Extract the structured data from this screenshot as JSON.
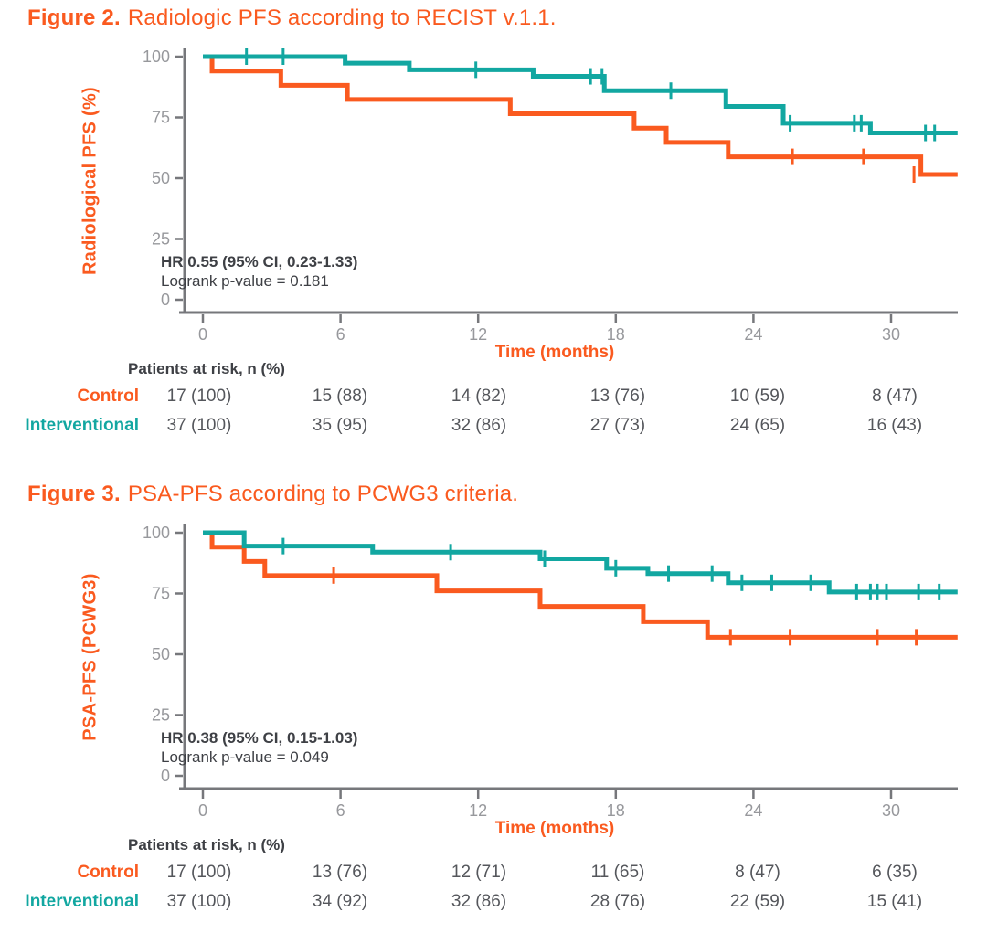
{
  "colors": {
    "orange": "#FA5A1F",
    "teal": "#12A7A1",
    "axis": "#76777B",
    "tick_label": "#97989C",
    "text_dark": "#3E4045",
    "risk_value": "#54565B"
  },
  "figures": [
    {
      "id": "fig2",
      "title_bold": "Figure 2.",
      "title_rest": "Radiologic PFS according to RECIST v.1.1.",
      "ylabel": "Radiological PFS (%)",
      "xlabel": "Time (months)",
      "hr_line1": "HR 0.55 (95% CI, 0.23-1.33)",
      "hr_line2": "Logrank p-value = 0.181",
      "risk_header": "Patients at risk, n (%)",
      "risk_rows": [
        {
          "label": "Control",
          "color": "#FA5A1F",
          "values": [
            "17 (100)",
            "15 (88)",
            "14 (82)",
            "13 (76)",
            "10 (59)",
            "8 (47)"
          ]
        },
        {
          "label": "Interventional",
          "color": "#12A7A1",
          "values": [
            "37 (100)",
            "35 (95)",
            "32 (86)",
            "27 (73)",
            "24 (65)",
            "16 (43)"
          ]
        }
      ],
      "chart_data": {
        "type": "line",
        "subtype": "kaplan-meier-step",
        "title": "Radiologic PFS according to RECIST v.1.1.",
        "xlabel": "Time (months)",
        "ylabel": "Radiological PFS (%)",
        "xlim": [
          0,
          33
        ],
        "ylim": [
          0,
          100
        ],
        "x_ticks": [
          0,
          6,
          12,
          18,
          24,
          30
        ],
        "y_ticks": [
          0,
          25,
          50,
          75,
          100
        ],
        "grid": false,
        "legend": "none",
        "series": [
          {
            "name": "Control",
            "color": "#FA5A1F",
            "steps": [
              [
                0,
                100
              ],
              [
                0.4,
                94.1
              ],
              [
                3.4,
                88.2
              ],
              [
                6.3,
                82.4
              ],
              [
                13.4,
                76.5
              ],
              [
                18.8,
                70.6
              ],
              [
                20.2,
                64.7
              ],
              [
                22.9,
                58.8
              ],
              [
                31.3,
                51.5
              ],
              [
                32.9,
                51.5
              ]
            ],
            "censors": [
              [
                25.7,
                58.8
              ],
              [
                28.8,
                58.8
              ],
              [
                31.0,
                51.5
              ]
            ]
          },
          {
            "name": "Interventional",
            "color": "#12A7A1",
            "steps": [
              [
                0,
                100
              ],
              [
                6.2,
                97.3
              ],
              [
                9.0,
                94.6
              ],
              [
                14.4,
                91.9
              ],
              [
                17.5,
                86.0
              ],
              [
                22.8,
                79.5
              ],
              [
                25.3,
                72.6
              ],
              [
                29.1,
                68.6
              ],
              [
                32.9,
                68.6
              ]
            ],
            "censors": [
              [
                1.9,
                100
              ],
              [
                3.5,
                100
              ],
              [
                11.9,
                94.6
              ],
              [
                16.9,
                91.9
              ],
              [
                17.4,
                91.9
              ],
              [
                20.4,
                86.0
              ],
              [
                25.6,
                72.6
              ],
              [
                28.4,
                72.6
              ],
              [
                28.7,
                72.6
              ],
              [
                31.5,
                68.6
              ],
              [
                31.9,
                68.6
              ]
            ]
          }
        ]
      }
    },
    {
      "id": "fig3",
      "title_bold": "Figure 3.",
      "title_rest": "PSA-PFS according to PCWG3 criteria.",
      "ylabel": "PSA-PFS (PCWG3)",
      "xlabel": "Time (months)",
      "hr_line1": "HR 0.38 (95% CI, 0.15-1.03)",
      "hr_line2": "Logrank p-value = 0.049",
      "risk_header": "Patients at risk, n (%)",
      "risk_rows": [
        {
          "label": "Control",
          "color": "#FA5A1F",
          "values": [
            "17 (100)",
            "13 (76)",
            "12 (71)",
            "11 (65)",
            "8 (47)",
            "6 (35)"
          ]
        },
        {
          "label": "Interventional",
          "color": "#12A7A1",
          "values": [
            "37 (100)",
            "34 (92)",
            "32 (86)",
            "28 (76)",
            "22 (59)",
            "15 (41)"
          ]
        }
      ],
      "chart_data": {
        "type": "line",
        "subtype": "kaplan-meier-step",
        "title": "PSA-PFS according to PCWG3 criteria.",
        "xlabel": "Time (months)",
        "ylabel": "PSA-PFS (PCWG3)",
        "xlim": [
          0,
          33
        ],
        "ylim": [
          0,
          100
        ],
        "x_ticks": [
          0,
          6,
          12,
          18,
          24,
          30
        ],
        "y_ticks": [
          0,
          25,
          50,
          75,
          100
        ],
        "grid": false,
        "legend": "none",
        "series": [
          {
            "name": "Control",
            "color": "#FA5A1F",
            "steps": [
              [
                0,
                100
              ],
              [
                0.4,
                94.1
              ],
              [
                1.8,
                88.2
              ],
              [
                2.7,
                82.4
              ],
              [
                10.2,
                76.1
              ],
              [
                14.7,
                69.7
              ],
              [
                19.2,
                63.4
              ],
              [
                22.0,
                57.0
              ],
              [
                32.9,
                57.0
              ]
            ],
            "censors": [
              [
                5.7,
                82.4
              ],
              [
                23.0,
                57.0
              ],
              [
                25.6,
                57.0
              ],
              [
                29.4,
                57.0
              ],
              [
                31.1,
                57.0
              ]
            ]
          },
          {
            "name": "Interventional",
            "color": "#12A7A1",
            "steps": [
              [
                0,
                100
              ],
              [
                1.8,
                94.5
              ],
              [
                7.4,
                92.0
              ],
              [
                14.7,
                89.3
              ],
              [
                17.6,
                85.4
              ],
              [
                19.4,
                83.2
              ],
              [
                22.9,
                79.4
              ],
              [
                27.3,
                75.6
              ],
              [
                32.9,
                75.6
              ]
            ],
            "censors": [
              [
                3.5,
                94.5
              ],
              [
                10.8,
                92.0
              ],
              [
                14.9,
                89.3
              ],
              [
                18.0,
                85.4
              ],
              [
                20.3,
                83.2
              ],
              [
                22.2,
                83.2
              ],
              [
                23.5,
                79.4
              ],
              [
                24.8,
                79.4
              ],
              [
                26.5,
                79.4
              ],
              [
                28.5,
                75.6
              ],
              [
                29.1,
                75.6
              ],
              [
                29.4,
                75.6
              ],
              [
                29.8,
                75.6
              ],
              [
                31.2,
                75.6
              ],
              [
                32.1,
                75.6
              ]
            ]
          }
        ]
      }
    }
  ]
}
